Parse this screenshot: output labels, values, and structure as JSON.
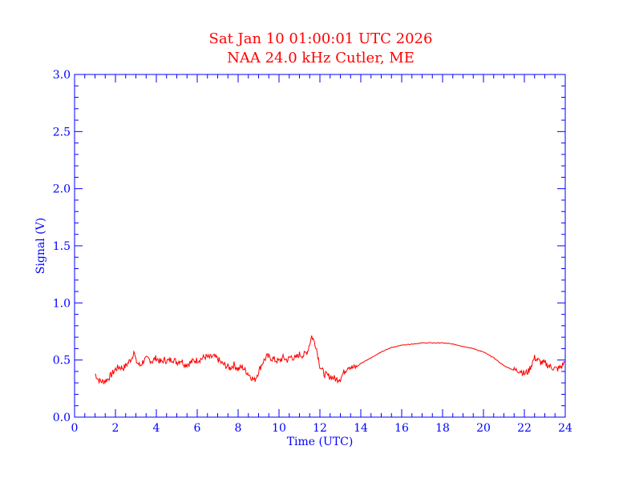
{
  "chart_data": {
    "type": "line",
    "title": "Sat Jan 10 01:00:01 UTC 2026",
    "subtitle": "NAA 24.0 kHz Cutler, ME",
    "xlabel": "Time (UTC)",
    "ylabel": "Signal (V)",
    "xlim": [
      0,
      24
    ],
    "ylim": [
      0.0,
      3.0
    ],
    "xticks": [
      "0",
      "2",
      "4",
      "6",
      "8",
      "10",
      "12",
      "14",
      "16",
      "18",
      "20",
      "22",
      "24"
    ],
    "yticks": [
      "0.0",
      "0.5",
      "1.0",
      "1.5",
      "2.0",
      "2.5",
      "3.0"
    ],
    "grid": false,
    "legend": "none",
    "series": [
      {
        "color": "#ff0000",
        "x": [
          1.0,
          1.2,
          1.4,
          1.6,
          1.8,
          2.0,
          2.2,
          2.4,
          2.6,
          2.8,
          2.9,
          3.0,
          3.2,
          3.4,
          3.6,
          3.8,
          4.0,
          4.2,
          4.4,
          4.6,
          4.8,
          5.0,
          5.2,
          5.4,
          5.6,
          5.8,
          6.0,
          6.2,
          6.4,
          6.6,
          6.8,
          7.0,
          7.2,
          7.4,
          7.6,
          7.8,
          8.0,
          8.2,
          8.4,
          8.6,
          8.8,
          9.0,
          9.2,
          9.4,
          9.6,
          9.8,
          10.0,
          10.2,
          10.4,
          10.6,
          10.8,
          11.0,
          11.2,
          11.4,
          11.6,
          11.8,
          12.0,
          12.2,
          12.4,
          12.6,
          12.8,
          13.0,
          13.2,
          13.4,
          13.6,
          13.8,
          14.0,
          14.5,
          15.0,
          15.5,
          16.0,
          16.5,
          17.0,
          17.5,
          18.0,
          18.5,
          19.0,
          19.5,
          20.0,
          20.5,
          21.0,
          21.5,
          21.8,
          22.0,
          22.2,
          22.5,
          22.8,
          23.0,
          23.3,
          23.6,
          23.8,
          24.0
        ],
        "values": [
          0.38,
          0.32,
          0.31,
          0.33,
          0.37,
          0.42,
          0.44,
          0.43,
          0.47,
          0.52,
          0.58,
          0.49,
          0.45,
          0.5,
          0.51,
          0.49,
          0.52,
          0.48,
          0.5,
          0.49,
          0.51,
          0.48,
          0.5,
          0.46,
          0.47,
          0.49,
          0.5,
          0.51,
          0.53,
          0.52,
          0.53,
          0.51,
          0.47,
          0.45,
          0.43,
          0.46,
          0.42,
          0.44,
          0.4,
          0.36,
          0.32,
          0.4,
          0.48,
          0.53,
          0.52,
          0.5,
          0.49,
          0.52,
          0.5,
          0.53,
          0.51,
          0.55,
          0.54,
          0.58,
          0.71,
          0.63,
          0.45,
          0.38,
          0.36,
          0.35,
          0.33,
          0.34,
          0.4,
          0.45,
          0.43,
          0.44,
          0.47,
          0.52,
          0.57,
          0.61,
          0.63,
          0.64,
          0.65,
          0.65,
          0.65,
          0.64,
          0.62,
          0.6,
          0.57,
          0.52,
          0.45,
          0.41,
          0.41,
          0.38,
          0.4,
          0.52,
          0.48,
          0.47,
          0.44,
          0.42,
          0.44,
          0.49
        ]
      }
    ]
  }
}
